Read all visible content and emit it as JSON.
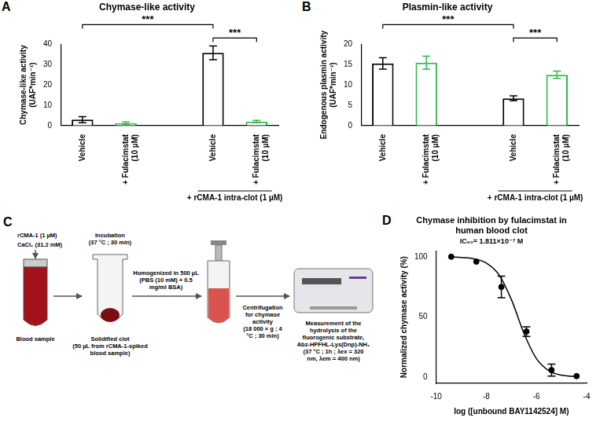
{
  "chart_data": [
    {
      "panel": "A",
      "type": "bar",
      "title": "Chymase-like activity",
      "y_label": "Chymase-like activity (UAF*min⁻¹)",
      "categories": [
        "Vehicle",
        "+ Fulacimstat (10 µM)",
        null,
        "Vehicle",
        "+ Fulacimstat (10 µM)"
      ],
      "values": [
        2.9,
        1.1,
        null,
        35.8,
        2.0
      ],
      "errors": [
        1.5,
        0.7,
        null,
        3.4,
        0.5
      ],
      "colors": [
        "#000000",
        "#2eb84b",
        null,
        "#000000",
        "#2eb84b"
      ],
      "ylim": [
        0,
        40
      ],
      "yticks": [
        0,
        10,
        20,
        30,
        40
      ],
      "grid": false,
      "group_label": {
        "text": "+ rCMA-1 intra-clot (1 µM)",
        "from": 3,
        "to": 4
      },
      "annotations": [
        {
          "text": "***",
          "from": 0,
          "to": 3
        },
        {
          "text": "***",
          "from": 3,
          "to": 4
        }
      ]
    },
    {
      "panel": "B",
      "type": "bar",
      "title": "Plasmin-like activity",
      "y_label": "Endogenous plasmin activity (UAF*min⁻¹)",
      "categories": [
        "Vehicle",
        "+ Fulacimstat (10 µM)",
        null,
        "Vehicle",
        "+ Fulacimstat (10 µM)"
      ],
      "values": [
        15.3,
        15.5,
        null,
        6.7,
        12.5
      ],
      "errors": [
        1.4,
        1.6,
        null,
        0.6,
        0.9
      ],
      "colors": [
        "#000000",
        "#2eb84b",
        null,
        "#000000",
        "#2eb84b"
      ],
      "ylim": [
        0,
        20
      ],
      "yticks": [
        0,
        5,
        10,
        15,
        20
      ],
      "grid": false,
      "group_label": {
        "text": "+ rCMA-1 intra-clot (1 µM)",
        "from": 3,
        "to": 4
      },
      "annotations": [
        {
          "text": "***",
          "from": 0,
          "to": 3
        },
        {
          "text": "***",
          "from": 3,
          "to": 4
        }
      ]
    },
    {
      "panel": "D",
      "type": "scatter",
      "title": "Chymase inhibition by fulacimstat in human blood clot",
      "subtitle": "IC₅₀= 1.811×10⁻⁷ M",
      "x_label": "log ([unbound BAY1142524] M)",
      "y_label": "Normalized chymase activity (%)",
      "x": [
        -9.4,
        -8.4,
        -7.4,
        -6.4,
        -5.4,
        -4.4
      ],
      "values": [
        100,
        96,
        75,
        38,
        6,
        1
      ],
      "errors": [
        null,
        null,
        9,
        4,
        5,
        null
      ],
      "curve": {
        "x": [
          -9.4,
          -9,
          -8.5,
          -8,
          -7.5,
          -7,
          -6.5,
          -6,
          -5.5,
          -5,
          -4.4
        ],
        "values": [
          99.9,
          99.4,
          98.3,
          94.8,
          85.2,
          64.5,
          36.5,
          15.4,
          5.4,
          1.8,
          0.5
        ]
      },
      "color": "#000000",
      "xlim": [
        -10,
        -4
      ],
      "xticks": [
        -10,
        -8,
        -6,
        -4
      ],
      "ylim": [
        -5,
        105
      ],
      "yticks": [
        0,
        50,
        100
      ],
      "grid": false
    }
  ],
  "diagram": {
    "panel": "C",
    "reagents": [
      "rCMA-1 (1 µM)",
      "CaCl₂ (31.2 mM)"
    ],
    "sample": "Blood sample",
    "incubation": "Incubation (37 °C ; 30 min)",
    "clot": "Solidified clot (50 µL from rCMA-1-spiked blood sample)",
    "homogenization": "Homogenized in 500 µL (PBS (10 mM) + 0.5 mg/ml BSA)",
    "centrifugation": "Centrifugation for chymase activity (18 000 × g ; 4 °C ; 30 min)",
    "measurement": "Measurement of the hydrolysis of the fluorogenic substrate, Abz-HPFHL-Lys(Dnp)-NH₂ (37 °C ; 1h ; λex = 320 nm, λem = 400 nm)"
  }
}
